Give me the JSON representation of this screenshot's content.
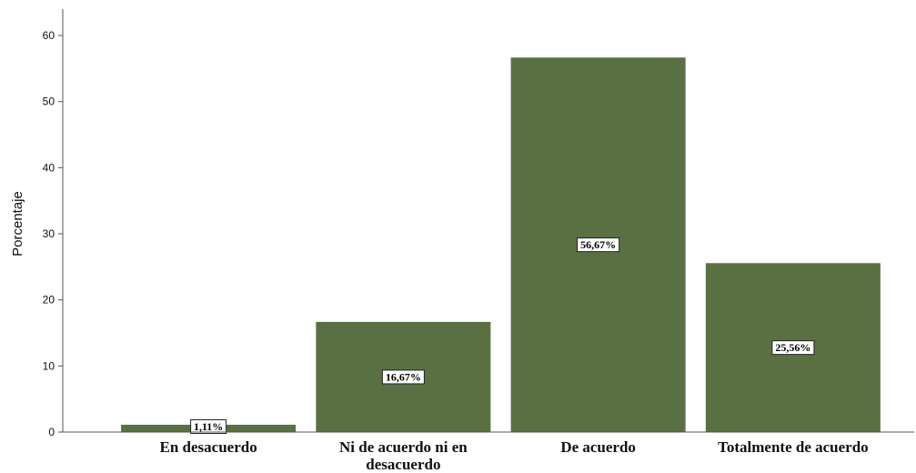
{
  "chart_data": {
    "type": "bar",
    "title": "",
    "xlabel": "",
    "ylabel": "Porcentaje",
    "categories": [
      "En desacuerdo",
      "Ni de acuerdo ni en desacuerdo",
      "De acuerdo",
      "Totalmente de acuerdo"
    ],
    "category_label_lines": [
      [
        "En desacuerdo"
      ],
      [
        "Ni de acuerdo ni en",
        "desacuerdo"
      ],
      [
        "De acuerdo"
      ],
      [
        "Totalmente de acuerdo"
      ]
    ],
    "values": [
      1.11,
      16.67,
      56.67,
      25.56
    ],
    "data_labels": [
      "1,11%",
      "16,67%",
      "56,67%",
      "25,56%"
    ],
    "ylim": [
      0,
      64
    ],
    "yticks": [
      0,
      10,
      20,
      30,
      40,
      50,
      60
    ],
    "grid": false,
    "legend": "none",
    "bar_color": "#5a7043"
  }
}
